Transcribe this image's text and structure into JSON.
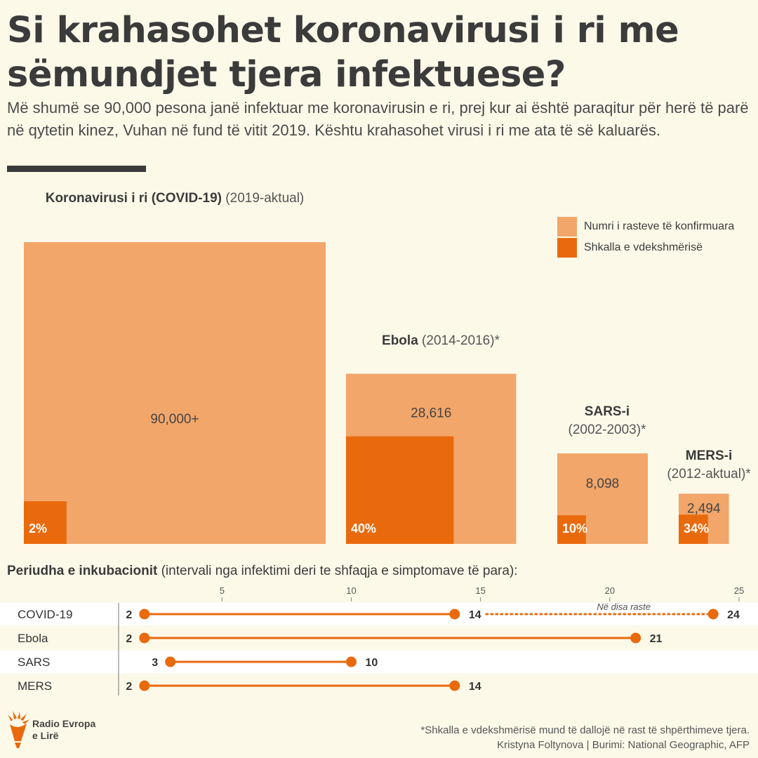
{
  "title": "Si krahasohet koronavirusi i ri me sëmundjet tjera infektuese?",
  "subtitle": "Më shumë se 90,000 pesona janë infektuar me koronavirusin e ri, prej kur ai është paraqitur për herë të parë në qytetin kinez, Vuhan në fund të vitit 2019. Kështu krahasohet virusi i ri me ata të së kaluarës.",
  "legend": {
    "cases": "Numri i rasteve të konfirmuara",
    "fatality": "Shkalla e vdekshmërisë"
  },
  "colors": {
    "cases": "#f2a66a",
    "fatality": "#e96a0c",
    "dot": "#e96a0c",
    "text": "#3b3b3b"
  },
  "incubation": {
    "title_bold": "Periudha e inkubacionit",
    "title_rest": " (intervali nga infektimi deri te shfaqja e simptomave të para):",
    "note": "Në disa raste"
  },
  "footer": {
    "footnote": "*Shkalla e vdekshmërisë mund të dallojë në rast të shpërthimeve tjera.",
    "credit": "Kristyna Foltynova | Burimi: National Geographic, AFP",
    "logo_line1": "Radio Evropa",
    "logo_line2": "e Lirë"
  },
  "chart_data": [
    {
      "type": "bar",
      "title": "",
      "series_names": [
        "Numri i rasteve të konfirmuara",
        "Shkalla e vdekshmërisë"
      ],
      "items": [
        {
          "name": "Koronavirusi i ri (COVID-19)",
          "period": "(2019-aktual)",
          "cases": 90000,
          "cases_label": "90,000+",
          "fatality": 2,
          "fatality_label": "2%"
        },
        {
          "name": "Ebola",
          "period": "(2014-2016)*",
          "cases": 28616,
          "cases_label": "28,616",
          "fatality": 40,
          "fatality_label": "40%"
        },
        {
          "name": "SARS-i",
          "period": "(2002-2003)*",
          "cases": 8098,
          "cases_label": "8,098",
          "fatality": 10,
          "fatality_label": "10%"
        },
        {
          "name": "MERS-i",
          "period": "(2012-aktual)*",
          "cases": 2494,
          "cases_label": "2,494",
          "fatality": 34,
          "fatality_label": "34%"
        }
      ]
    },
    {
      "type": "range",
      "title": "Periudha e inkubacionit",
      "xlim": [
        1,
        25
      ],
      "xticks": [
        5,
        10,
        15,
        20,
        25
      ],
      "rows": [
        {
          "name": "COVID-19",
          "min": 2,
          "max": 14,
          "extended_max": 24
        },
        {
          "name": "Ebola",
          "min": 2,
          "max": 21
        },
        {
          "name": "SARS",
          "min": 3,
          "max": 10
        },
        {
          "name": "MERS",
          "min": 2,
          "max": 14
        }
      ]
    }
  ]
}
